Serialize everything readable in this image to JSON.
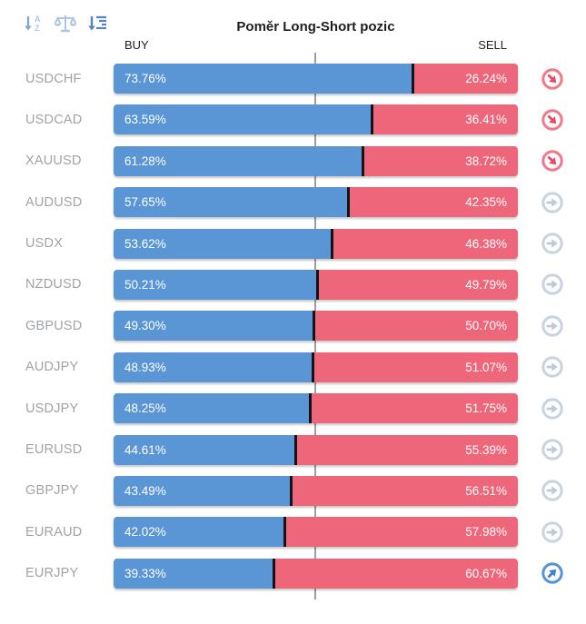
{
  "header": {
    "title": "Poměr Long-Short pozic",
    "buy_label": "BUY",
    "sell_label": "SELL"
  },
  "toolbar": {
    "icons": [
      {
        "name": "sort-alphabetical-icon"
      },
      {
        "name": "balance-compare-icon"
      },
      {
        "name": "sort-by-value-icon"
      }
    ]
  },
  "colors": {
    "buy_bar": "#5a96d6",
    "sell_bar": "#ee6679",
    "segment_divider": "#141414",
    "midline": "#9e9e9e",
    "trend_down": "#e64a64",
    "trend_neutral": "#bccadb",
    "trend_up": "#3d83cf"
  },
  "rows": [
    {
      "pair": "USDCHF",
      "buy": "73.76%",
      "sell": "26.24%",
      "buy_pct": 73.76,
      "trend": "down"
    },
    {
      "pair": "USDCAD",
      "buy": "63.59%",
      "sell": "36.41%",
      "buy_pct": 63.59,
      "trend": "down"
    },
    {
      "pair": "XAUUSD",
      "buy": "61.28%",
      "sell": "38.72%",
      "buy_pct": 61.28,
      "trend": "down"
    },
    {
      "pair": "AUDUSD",
      "buy": "57.65%",
      "sell": "42.35%",
      "buy_pct": 57.65,
      "trend": "neutral"
    },
    {
      "pair": "USDX",
      "buy": "53.62%",
      "sell": "46.38%",
      "buy_pct": 53.62,
      "trend": "neutral"
    },
    {
      "pair": "NZDUSD",
      "buy": "50.21%",
      "sell": "49.79%",
      "buy_pct": 50.21,
      "trend": "neutral"
    },
    {
      "pair": "GBPUSD",
      "buy": "49.30%",
      "sell": "50.70%",
      "buy_pct": 49.3,
      "trend": "neutral"
    },
    {
      "pair": "AUDJPY",
      "buy": "48.93%",
      "sell": "51.07%",
      "buy_pct": 48.93,
      "trend": "neutral"
    },
    {
      "pair": "USDJPY",
      "buy": "48.25%",
      "sell": "51.75%",
      "buy_pct": 48.25,
      "trend": "neutral"
    },
    {
      "pair": "EURUSD",
      "buy": "44.61%",
      "sell": "55.39%",
      "buy_pct": 44.61,
      "trend": "neutral"
    },
    {
      "pair": "GBPJPY",
      "buy": "43.49%",
      "sell": "56.51%",
      "buy_pct": 43.49,
      "trend": "neutral"
    },
    {
      "pair": "EURAUD",
      "buy": "42.02%",
      "sell": "57.98%",
      "buy_pct": 42.02,
      "trend": "neutral"
    },
    {
      "pair": "EURJPY",
      "buy": "39.33%",
      "sell": "60.67%",
      "buy_pct": 39.33,
      "trend": "up"
    }
  ],
  "chart_data": {
    "type": "bar",
    "orientation": "horizontal",
    "stacked": true,
    "title": "Poměr Long-Short pozic",
    "categories": [
      "USDCHF",
      "USDCAD",
      "XAUUSD",
      "AUDUSD",
      "USDX",
      "NZDUSD",
      "GBPUSD",
      "AUDJPY",
      "USDJPY",
      "EURUSD",
      "GBPJPY",
      "EURAUD",
      "EURJPY"
    ],
    "series": [
      {
        "name": "BUY",
        "color": "#5a96d6",
        "values": [
          73.76,
          63.59,
          61.28,
          57.65,
          53.62,
          50.21,
          49.3,
          48.93,
          48.25,
          44.61,
          43.49,
          42.02,
          39.33
        ]
      },
      {
        "name": "SELL",
        "color": "#ee6679",
        "values": [
          26.24,
          36.41,
          38.72,
          42.35,
          46.38,
          49.79,
          50.7,
          51.07,
          51.75,
          55.39,
          56.51,
          57.98,
          60.67
        ]
      }
    ],
    "xlim": [
      0,
      100
    ],
    "midline": 50,
    "grid": "single vertical midline",
    "legend_position": "top (BUY left, SELL right)",
    "trend_indicators": [
      "down",
      "down",
      "down",
      "neutral",
      "neutral",
      "neutral",
      "neutral",
      "neutral",
      "neutral",
      "neutral",
      "neutral",
      "neutral",
      "up"
    ],
    "sorted_by": "buy percentage descending"
  }
}
